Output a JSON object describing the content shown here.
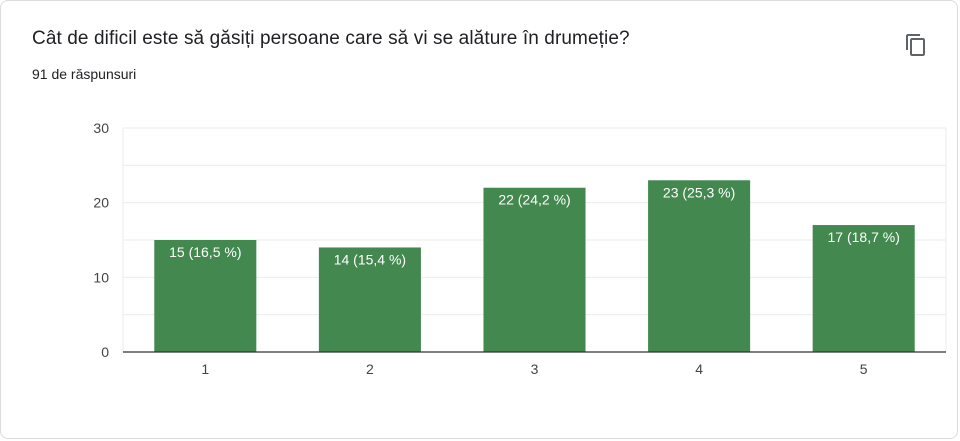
{
  "question": {
    "title": "Cât de dificil este să găsiți persoane care să vi se alăture în drumeție?",
    "responses_label": "91 de răspunsuri"
  },
  "copy_icon": "copy-icon",
  "colors": {
    "bar": "#43894f",
    "grid": "#ebebeb",
    "axis": "#333333",
    "bar_label": "#ffffff",
    "tick_text": "#444444"
  },
  "chart_data": {
    "type": "bar",
    "categories": [
      "1",
      "2",
      "3",
      "4",
      "5"
    ],
    "values": [
      15,
      14,
      22,
      23,
      17
    ],
    "data_labels": [
      "15 (16,5 %)",
      "14 (15,4 %)",
      "22 (24,2 %)",
      "23 (25,3 %)",
      "17 (18,7 %)"
    ],
    "ylim": [
      0,
      30
    ],
    "yticks": [
      0,
      10,
      20,
      30
    ],
    "minor_grid_step": 5,
    "grid": true,
    "legend": "none"
  }
}
